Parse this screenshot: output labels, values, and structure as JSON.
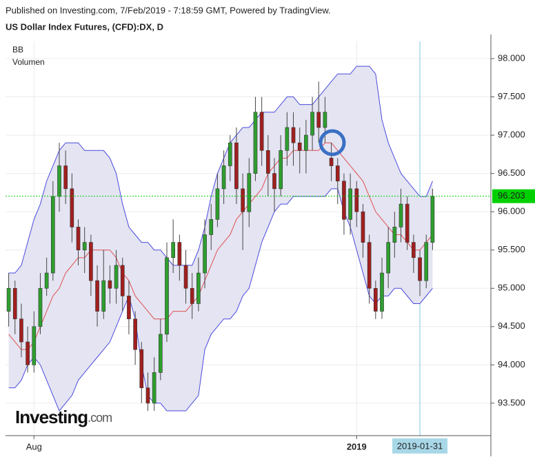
{
  "header": {
    "published": "Published on Investing.com, 7/Feb/2019 - 7:18:59 GMT, Powered by TradingView.",
    "title": "US Dollar Index Futures, (CFD):DX, D"
  },
  "indicators": [
    "BB",
    "Volumen"
  ],
  "branding": {
    "name": "Investing",
    "suffix": ".com"
  },
  "chart_data": {
    "type": "candlestick",
    "categories": [
      null,
      null,
      null,
      null,
      "Aug",
      null,
      null,
      null,
      null,
      null,
      null,
      null,
      null,
      null,
      null,
      null,
      null,
      null,
      null,
      null,
      null,
      null,
      null,
      null,
      null,
      null,
      null,
      null,
      null,
      null,
      null,
      null,
      null,
      null,
      null,
      null,
      null,
      null,
      null,
      null,
      null,
      null,
      null,
      null,
      null,
      null,
      null,
      null,
      null,
      null,
      null,
      null,
      null,
      null,
      null,
      "2019",
      null,
      null,
      null,
      null,
      null,
      null,
      null,
      null,
      null,
      "2019-01-31",
      null,
      null
    ],
    "open": [
      94.7,
      95.0,
      94.6,
      94.3,
      94.0,
      94.5,
      95.0,
      95.2,
      96.2,
      96.6,
      96.3,
      95.8,
      95.5,
      95.6,
      95.1,
      94.7,
      95.1,
      95.0,
      95.3,
      94.9,
      94.6,
      94.2,
      93.7,
      93.5,
      93.9,
      94.4,
      95.4,
      95.6,
      95.3,
      95.0,
      94.8,
      95.2,
      95.7,
      95.9,
      96.3,
      96.6,
      96.9,
      96.3,
      96.0,
      96.5,
      97.3,
      96.8,
      96.5,
      96.3,
      96.8,
      97.1,
      96.9,
      96.8,
      97.0,
      97.3,
      97.1,
      96.7,
      96.6,
      96.4,
      95.9,
      96.3,
      96.0,
      95.6,
      95.0,
      94.7,
      95.2,
      95.6,
      95.8,
      96.1,
      95.6,
      95.4,
      95.1,
      95.6
    ],
    "high": [
      95.2,
      95.1,
      94.8,
      94.5,
      94.7,
      95.2,
      95.4,
      96.4,
      96.9,
      96.8,
      96.5,
      95.9,
      95.8,
      95.7,
      95.3,
      95.5,
      95.3,
      95.5,
      95.4,
      95.1,
      94.7,
      94.3,
      93.9,
      94.1,
      94.6,
      95.6,
      95.9,
      95.7,
      95.5,
      95.2,
      95.4,
      95.9,
      96.1,
      96.5,
      96.8,
      97.0,
      97.1,
      96.5,
      96.7,
      97.5,
      97.5,
      97.0,
      96.7,
      97.0,
      97.3,
      97.3,
      97.1,
      97.2,
      97.5,
      97.7,
      97.5,
      96.9,
      96.7,
      96.5,
      96.5,
      96.4,
      96.1,
      95.7,
      95.1,
      95.4,
      95.8,
      96.0,
      96.3,
      96.2,
      95.7,
      95.5,
      95.7,
      96.3
    ],
    "low": [
      94.5,
      94.4,
      94.1,
      93.9,
      93.9,
      94.4,
      94.9,
      95.1,
      96.0,
      96.1,
      95.6,
      95.3,
      95.2,
      94.9,
      94.5,
      94.6,
      94.8,
      94.8,
      94.7,
      94.4,
      94.0,
      93.5,
      93.4,
      93.4,
      93.8,
      94.3,
      95.2,
      95.1,
      94.8,
      94.6,
      94.7,
      95.0,
      95.5,
      95.8,
      96.1,
      96.4,
      96.1,
      95.5,
      95.8,
      96.4,
      96.6,
      96.2,
      96.0,
      96.2,
      96.6,
      96.6,
      96.5,
      96.5,
      96.8,
      96.9,
      96.9,
      96.4,
      96.1,
      95.7,
      95.7,
      95.8,
      95.4,
      94.8,
      94.6,
      94.6,
      95.0,
      95.4,
      95.6,
      95.5,
      95.2,
      94.9,
      95.0,
      95.5
    ],
    "close": [
      95.0,
      94.6,
      94.3,
      94.0,
      94.5,
      95.0,
      95.2,
      96.2,
      96.6,
      96.3,
      95.8,
      95.5,
      95.6,
      95.1,
      94.7,
      95.1,
      95.0,
      95.3,
      94.9,
      94.6,
      94.2,
      93.7,
      93.5,
      93.9,
      94.4,
      95.4,
      95.6,
      95.3,
      95.0,
      94.8,
      95.2,
      95.7,
      95.9,
      96.3,
      96.6,
      96.9,
      96.3,
      96.0,
      96.5,
      97.3,
      96.8,
      96.5,
      96.3,
      96.8,
      97.1,
      96.9,
      96.8,
      97.0,
      97.3,
      97.1,
      97.3,
      96.6,
      96.4,
      95.9,
      96.3,
      96.0,
      95.6,
      95.0,
      94.7,
      95.2,
      95.6,
      95.8,
      96.1,
      95.6,
      95.4,
      95.1,
      95.6,
      96.203
    ],
    "bb_upper": [
      95.2,
      95.2,
      95.3,
      95.6,
      95.9,
      96.1,
      96.4,
      96.6,
      96.8,
      96.9,
      96.9,
      96.9,
      96.8,
      96.8,
      96.8,
      96.8,
      96.7,
      96.5,
      96.1,
      95.8,
      95.7,
      95.6,
      95.6,
      95.5,
      95.5,
      95.4,
      95.3,
      95.3,
      95.3,
      95.3,
      95.5,
      95.8,
      96.2,
      96.5,
      96.7,
      96.9,
      97.0,
      97.1,
      97.1,
      97.2,
      97.3,
      97.3,
      97.3,
      97.4,
      97.5,
      97.5,
      97.4,
      97.4,
      97.4,
      97.5,
      97.6,
      97.7,
      97.8,
      97.8,
      97.8,
      97.9,
      97.9,
      97.9,
      97.8,
      97.2,
      96.9,
      96.7,
      96.5,
      96.4,
      96.3,
      96.2,
      96.2,
      96.4
    ],
    "bb_middle": [
      94.4,
      94.3,
      94.2,
      94.2,
      94.3,
      94.5,
      94.7,
      94.9,
      95.0,
      95.2,
      95.3,
      95.4,
      95.4,
      95.5,
      95.5,
      95.5,
      95.5,
      95.4,
      95.2,
      95.1,
      94.9,
      94.8,
      94.7,
      94.6,
      94.6,
      94.6,
      94.7,
      94.7,
      94.7,
      94.8,
      94.9,
      95.1,
      95.3,
      95.5,
      95.6,
      95.7,
      95.9,
      96.0,
      96.1,
      96.2,
      96.3,
      96.5,
      96.6,
      96.7,
      96.7,
      96.8,
      96.8,
      96.8,
      96.8,
      96.8,
      96.9,
      96.9,
      96.8,
      96.7,
      96.6,
      96.5,
      96.4,
      96.2,
      96.0,
      95.9,
      95.8,
      95.7,
      95.7,
      95.6,
      95.5,
      95.5,
      95.6,
      95.7
    ],
    "bb_lower": [
      93.7,
      93.7,
      93.8,
      94.0,
      94.1,
      94.0,
      93.8,
      93.6,
      93.4,
      93.5,
      93.6,
      93.8,
      93.9,
      94.0,
      94.1,
      94.2,
      94.3,
      94.5,
      94.7,
      94.9,
      94.6,
      94.0,
      93.6,
      93.5,
      93.5,
      93.4,
      93.4,
      93.4,
      93.4,
      93.5,
      93.6,
      94.2,
      94.4,
      94.5,
      94.6,
      94.6,
      94.7,
      94.9,
      95.0,
      95.3,
      95.6,
      95.8,
      96.0,
      96.1,
      96.1,
      96.2,
      96.2,
      96.2,
      96.2,
      96.2,
      96.2,
      96.3,
      96.3,
      96.0,
      95.8,
      95.5,
      95.2,
      94.9,
      94.8,
      94.9,
      94.9,
      95.0,
      95.0,
      94.9,
      94.8,
      94.8,
      94.9,
      95.0
    ],
    "up_color": "#2e9e2e",
    "down_color": "#a11f1f",
    "band_color": "#4a4adf",
    "middle_color": "#e05050",
    "band_fill": "#e4e4f2",
    "last_price_color": "#00d000",
    "crosshair_color": "#a8d8e8",
    "ylim": [
      93.076,
      98.225
    ],
    "yticks": [
      {
        "value": 93.5,
        "label": "93.500"
      },
      {
        "value": 94,
        "label": "94.000"
      },
      {
        "value": 94.5,
        "label": "94.500"
      },
      {
        "value": 95,
        "label": "95.000"
      },
      {
        "value": 95.5,
        "label": "95.500"
      },
      {
        "value": 96,
        "label": "96.000"
      },
      {
        "value": 96.5,
        "label": "96.500"
      },
      {
        "value": 97,
        "label": "97.000"
      },
      {
        "value": 97.5,
        "label": "97.500"
      },
      {
        "value": 98,
        "label": "98.000"
      }
    ],
    "grid": true
  }
}
